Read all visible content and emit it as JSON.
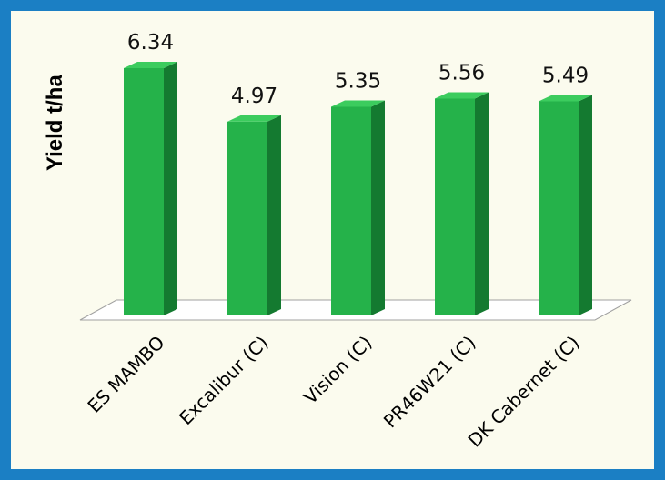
{
  "chart_data": {
    "type": "bar",
    "categories": [
      "ES MAMBO",
      "Excalibur (C)",
      "Vision (C)",
      "PR46W21 (C)",
      "DK Cabernet (C)"
    ],
    "values": [
      6.34,
      4.97,
      5.35,
      5.56,
      5.49
    ],
    "data_labels": [
      "6.34",
      "4.97",
      "5.35",
      "5.56",
      "5.49"
    ],
    "title": "",
    "xlabel": "",
    "ylabel": "Yield t/ha",
    "ylim": [
      0,
      6.34
    ],
    "grid": false,
    "legend": "none",
    "colors": {
      "bar_front": "#25b24a",
      "bar_side": "#147a30",
      "bar_top": "#3ccc5e",
      "frame": "#1b7fc4",
      "background": "#fbfbee"
    }
  }
}
